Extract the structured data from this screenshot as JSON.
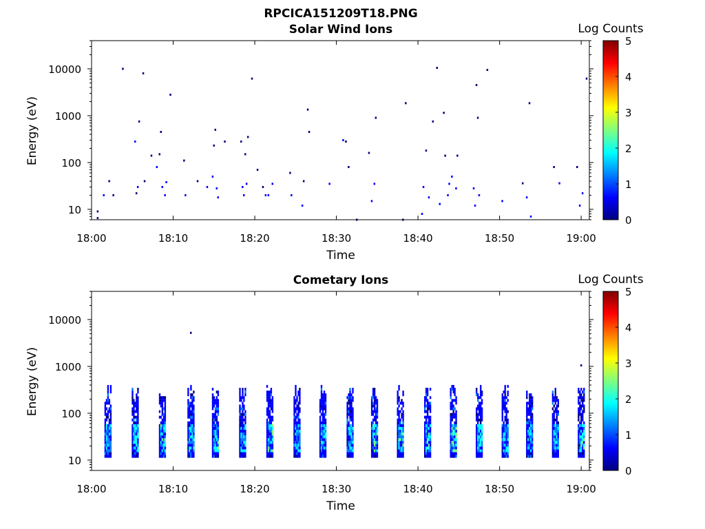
{
  "figure": {
    "title": "RPCICA151209T18.PNG"
  },
  "colormap": [
    "#00007f",
    "#0000ff",
    "#007fff",
    "#00ffff",
    "#7fff7f",
    "#ffff00",
    "#ff7f00",
    "#ff0000",
    "#7f0000"
  ],
  "chart_data": [
    {
      "type": "heatmap",
      "title": "Solar Wind Ions",
      "xlabel": "Time",
      "ylabel": "Energy (eV)",
      "xticks": [
        "18:00",
        "18:10",
        "18:20",
        "18:30",
        "18:40",
        "18:50",
        "19:00"
      ],
      "xlim": [
        "18:00",
        "19:01"
      ],
      "yscale": "log",
      "ylim": [
        6,
        40000
      ],
      "yticks": [
        10,
        100,
        1000,
        10000
      ],
      "ytick_labels": [
        "10",
        "100",
        "1000",
        "10000"
      ],
      "colorbar": {
        "label": "Log Counts",
        "range": [
          0,
          5
        ],
        "ticks": [
          "0",
          "1",
          "2",
          "3",
          "4",
          "5"
        ]
      },
      "points": [
        [
          "18:00:45",
          6.5,
          0.3
        ],
        [
          "18:00:45",
          9,
          0.3
        ],
        [
          "18:01:30",
          20,
          0.4
        ],
        [
          "18:02:10",
          40,
          0.3
        ],
        [
          "18:02:40",
          20,
          0.3
        ],
        [
          "18:03:50",
          10000,
          0.3
        ],
        [
          "18:05:20",
          280,
          0.4
        ],
        [
          "18:05:30",
          22,
          0.3
        ],
        [
          "18:05:40",
          30,
          0.5
        ],
        [
          "18:05:50",
          750,
          0.3
        ],
        [
          "18:06:20",
          8000,
          0.3
        ],
        [
          "18:06:30",
          40,
          0.3
        ],
        [
          "18:07:20",
          140,
          0.3
        ],
        [
          "18:08:00",
          80,
          0.4
        ],
        [
          "18:08:20",
          150,
          0.3
        ],
        [
          "18:08:30",
          450,
          0.3
        ],
        [
          "18:08:40",
          30,
          0.5
        ],
        [
          "18:09:00",
          20,
          0.4
        ],
        [
          "18:09:10",
          38,
          0.5
        ],
        [
          "18:09:40",
          2800,
          0.3
        ],
        [
          "18:11:20",
          110,
          0.3
        ],
        [
          "18:11:30",
          20,
          0.4
        ],
        [
          "18:13:00",
          40,
          0.3
        ],
        [
          "18:14:10",
          30,
          0.4
        ],
        [
          "18:14:50",
          50,
          0.5
        ],
        [
          "18:15:00",
          230,
          0.3
        ],
        [
          "18:15:10",
          500,
          0.3
        ],
        [
          "18:15:20",
          28,
          0.6
        ],
        [
          "18:15:30",
          18,
          0.5
        ],
        [
          "18:16:20",
          280,
          0.3
        ],
        [
          "18:18:20",
          280,
          0.3
        ],
        [
          "18:18:30",
          30,
          0.4
        ],
        [
          "18:18:40",
          20,
          0.5
        ],
        [
          "18:18:50",
          150,
          0.3
        ],
        [
          "18:19:00",
          35,
          0.5
        ],
        [
          "18:19:10",
          350,
          0.3
        ],
        [
          "18:19:40",
          6200,
          0.3
        ],
        [
          "18:20:20",
          70,
          0.3
        ],
        [
          "18:21:00",
          30,
          0.3
        ],
        [
          "18:21:20",
          20,
          0.5
        ],
        [
          "18:21:40",
          20,
          0.4
        ],
        [
          "18:22:10",
          35,
          0.4
        ],
        [
          "18:24:20",
          60,
          0.3
        ],
        [
          "18:24:30",
          20,
          0.4
        ],
        [
          "18:25:50",
          12,
          0.4
        ],
        [
          "18:26:00",
          40,
          0.3
        ],
        [
          "18:26:30",
          1350,
          0.3
        ],
        [
          "18:26:40",
          450,
          0.3
        ],
        [
          "18:29:10",
          35,
          0.4
        ],
        [
          "18:30:50",
          300,
          0.4
        ],
        [
          "18:31:10",
          280,
          0.3
        ],
        [
          "18:31:30",
          80,
          0.3
        ],
        [
          "18:32:30",
          6,
          0.3
        ],
        [
          "18:34:00",
          160,
          0.3
        ],
        [
          "18:34:20",
          15,
          0.4
        ],
        [
          "18:34:40",
          35,
          0.6
        ],
        [
          "18:34:50",
          900,
          0.3
        ],
        [
          "18:38:10",
          6,
          0.3
        ],
        [
          "18:38:30",
          1850,
          0.3
        ],
        [
          "18:40:30",
          8,
          0.5
        ],
        [
          "18:40:40",
          30,
          0.5
        ],
        [
          "18:41:00",
          180,
          0.3
        ],
        [
          "18:41:20",
          18,
          0.5
        ],
        [
          "18:41:50",
          750,
          0.3
        ],
        [
          "18:42:20",
          10500,
          0.3
        ],
        [
          "18:42:40",
          13,
          0.4
        ],
        [
          "18:43:10",
          1150,
          0.3
        ],
        [
          "18:43:20",
          140,
          0.3
        ],
        [
          "18:43:40",
          20,
          0.4
        ],
        [
          "18:43:50",
          35,
          0.5
        ],
        [
          "18:44:10",
          50,
          0.5
        ],
        [
          "18:44:40",
          28,
          0.5
        ],
        [
          "18:44:50",
          140,
          0.3
        ],
        [
          "18:46:50",
          28,
          0.4
        ],
        [
          "18:47:00",
          12,
          0.5
        ],
        [
          "18:47:10",
          4500,
          0.3
        ],
        [
          "18:47:20",
          900,
          0.3
        ],
        [
          "18:47:30",
          20,
          0.4
        ],
        [
          "18:48:30",
          9500,
          0.3
        ],
        [
          "18:50:20",
          15,
          0.5
        ],
        [
          "18:52:50",
          36,
          0.3
        ],
        [
          "18:53:20",
          18,
          0.6
        ],
        [
          "18:53:40",
          1850,
          0.3
        ],
        [
          "18:53:50",
          7,
          0.5
        ],
        [
          "18:56:40",
          80,
          0.3
        ],
        [
          "18:57:20",
          36,
          0.4
        ],
        [
          "18:59:30",
          80,
          0.3
        ],
        [
          "18:59:50",
          12,
          0.4
        ],
        [
          "19:00:10",
          22,
          0.5
        ],
        [
          "19:00:40",
          6200,
          0.3
        ]
      ]
    },
    {
      "type": "heatmap",
      "title": "Cometary Ions",
      "xlabel": "Time",
      "ylabel": "Energy (eV)",
      "xticks": [
        "18:00",
        "18:10",
        "18:20",
        "18:30",
        "18:40",
        "18:50",
        "19:00"
      ],
      "xlim": [
        "18:00",
        "19:01"
      ],
      "yscale": "log",
      "ylim": [
        6,
        40000
      ],
      "yticks": [
        10,
        100,
        1000,
        10000
      ],
      "ytick_labels": [
        "10",
        "100",
        "1000",
        "10000"
      ],
      "colorbar": {
        "label": "Log Counts",
        "range": [
          0,
          5
        ],
        "ticks": [
          "0",
          "1",
          "2",
          "3",
          "4",
          "5"
        ]
      },
      "burst_times": [
        "18:02:00",
        "18:05:20",
        "18:08:40",
        "18:12:10",
        "18:15:10",
        "18:18:30",
        "18:21:50",
        "18:25:10",
        "18:28:20",
        "18:31:40",
        "18:34:40",
        "18:37:50",
        "18:41:10",
        "18:44:20",
        "18:47:30",
        "18:50:40",
        "18:53:40",
        "18:56:50",
        "19:00:00"
      ],
      "burst_peak_log_counts": [
        1.5,
        1.6,
        1.9,
        1.4,
        1.8,
        1.6,
        1.9,
        1.5,
        1.7,
        1.5,
        1.8,
        1.9,
        1.9,
        2.1,
        1.7,
        1.5,
        1.5,
        1.6,
        1.8
      ],
      "isolated_points": [
        [
          "18:12:10",
          5200,
          0.3
        ],
        [
          "19:00:00",
          1050,
          0.3
        ]
      ]
    }
  ]
}
